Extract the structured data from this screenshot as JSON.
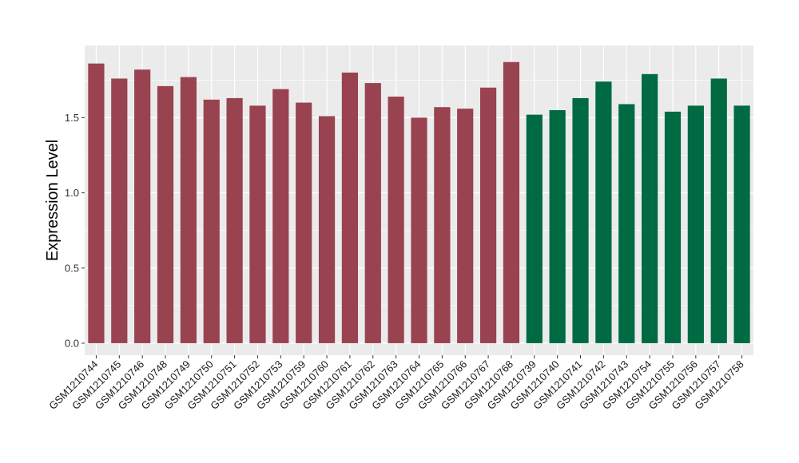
{
  "chart_data": {
    "type": "bar",
    "title": "",
    "xlabel": "",
    "ylabel": "Expression Level",
    "ylim": [
      -0.08,
      1.98
    ],
    "yticks": [
      "0.0",
      "0.5",
      "1.0",
      "1.5"
    ],
    "yticks_values": [
      0.0,
      0.5,
      1.0,
      1.5
    ],
    "grid": true,
    "legend": "none",
    "categories": [
      "GSM1210744",
      "GSM1210745",
      "GSM1210746",
      "GSM1210748",
      "GSM1210749",
      "GSM1210750",
      "GSM1210751",
      "GSM1210752",
      "GSM1210753",
      "GSM1210759",
      "GSM1210760",
      "GSM1210761",
      "GSM1210762",
      "GSM1210763",
      "GSM1210764",
      "GSM1210765",
      "GSM1210766",
      "GSM1210767",
      "GSM1210768",
      "GSM1210739",
      "GSM1210740",
      "GSM1210741",
      "GSM1210742",
      "GSM1210743",
      "GSM1210754",
      "GSM1210755",
      "GSM1210756",
      "GSM1210757",
      "GSM1210758"
    ],
    "values": [
      1.86,
      1.76,
      1.82,
      1.71,
      1.77,
      1.62,
      1.63,
      1.58,
      1.69,
      1.6,
      1.51,
      1.8,
      1.73,
      1.64,
      1.5,
      1.57,
      1.56,
      1.7,
      1.87,
      1.52,
      1.55,
      1.63,
      1.74,
      1.59,
      1.79,
      1.54,
      1.58,
      1.76,
      1.58
    ],
    "group_sizes": [
      19,
      10
    ],
    "colors": [
      "#98434f",
      "#006a43"
    ],
    "panel_background": "#ebebeb",
    "gridline_color": "#ffffff"
  }
}
